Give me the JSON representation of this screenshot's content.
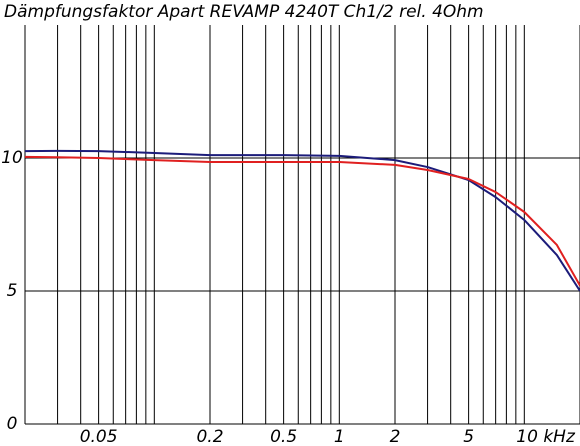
{
  "chart_data": {
    "type": "line",
    "title": "Dämpfungsfaktor Apart REVAMP 4240T Ch1/2 rel. 4Ohm",
    "x": [
      0.02,
      0.03,
      0.05,
      0.1,
      0.2,
      0.5,
      1,
      2,
      3,
      5,
      7,
      10,
      15,
      20
    ],
    "series": [
      {
        "color": "#1c1c7a",
        "values": [
          10.26,
          10.27,
          10.26,
          10.19,
          10.11,
          10.11,
          10.08,
          9.92,
          9.66,
          9.17,
          8.53,
          7.67,
          6.35,
          5.0
        ]
      },
      {
        "color": "#e02020",
        "values": [
          10.04,
          10.03,
          10.0,
          9.92,
          9.85,
          9.85,
          9.85,
          9.74,
          9.55,
          9.21,
          8.72,
          7.97,
          6.73,
          5.2
        ]
      }
    ],
    "log_x": true,
    "xlim": [
      0.02,
      20
    ],
    "xticks": [
      0.05,
      0.2,
      0.5,
      1,
      2,
      5,
      {
        "value": 10,
        "label": "10 kHz"
      }
    ],
    "xgrid": [
      0.02,
      0.03,
      0.04,
      0.05,
      0.06,
      0.07,
      0.08,
      0.09,
      0.1,
      0.2,
      0.3,
      0.4,
      0.5,
      0.6,
      0.7,
      0.8,
      0.9,
      1,
      2,
      3,
      4,
      5,
      6,
      7,
      8,
      9,
      10,
      20
    ],
    "ylim": [
      0,
      15
    ],
    "yticks": [
      0,
      5,
      10
    ],
    "grid": true
  }
}
